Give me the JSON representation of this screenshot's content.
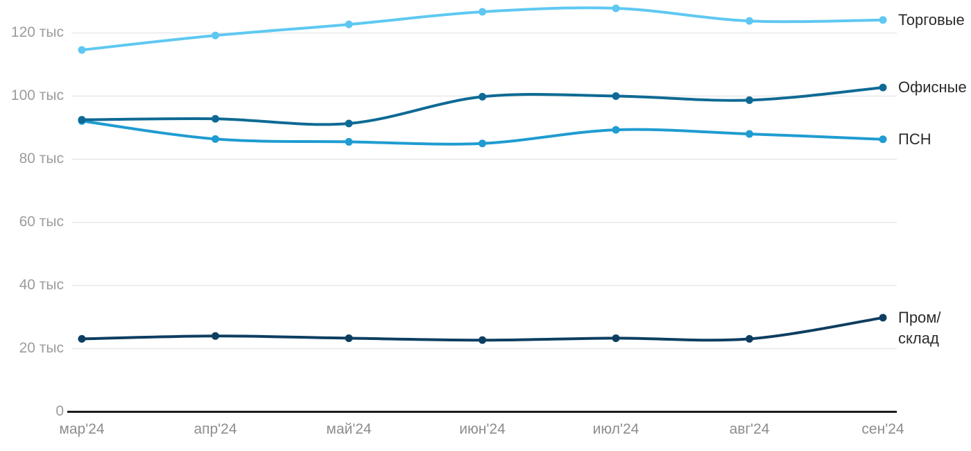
{
  "chart_data": {
    "type": "line",
    "title": "",
    "xlabel": "",
    "ylabel": "",
    "unit_suffix": "тыс",
    "categories": [
      "мар'24",
      "апр'24",
      "май'24",
      "июн'24",
      "июл'24",
      "авг'24",
      "сен'24"
    ],
    "series": [
      {
        "name": "Торговые",
        "label_lines": [
          "Торговые"
        ],
        "color": "#5fc8f2",
        "values": [
          114.5,
          119.1,
          122.6,
          126.6,
          127.7,
          123.7,
          124.0
        ]
      },
      {
        "name": "ПСН",
        "label_lines": [
          "ПСН"
        ],
        "color": "#1f9cd1",
        "values": [
          92.0,
          86.3,
          85.4,
          84.9,
          89.2,
          87.9,
          86.2
        ]
      },
      {
        "name": "Офисные",
        "label_lines": [
          "Офисные"
        ],
        "color": "#0e6a94",
        "values": [
          92.4,
          92.7,
          91.2,
          99.7,
          99.9,
          98.6,
          102.6
        ]
      },
      {
        "name": "Пром/склад",
        "label_lines": [
          "Пром/",
          "склад"
        ],
        "color": "#0d3e61",
        "values": [
          23.0,
          23.9,
          23.2,
          22.6,
          23.2,
          23.0,
          29.7
        ]
      }
    ],
    "yticks": [
      {
        "value": 0,
        "label": "0"
      },
      {
        "value": 20,
        "label": "20 тыс"
      },
      {
        "value": 40,
        "label": "40 тыс"
      },
      {
        "value": 60,
        "label": "60 тыс"
      },
      {
        "value": 80,
        "label": "80 тыс"
      },
      {
        "value": 100,
        "label": "100 тыс"
      },
      {
        "value": 120,
        "label": "120 тыс"
      }
    ],
    "ylim": [
      0,
      130
    ],
    "grid": true,
    "legend_position": "right-end-labels"
  },
  "style": {
    "background": "#ffffff",
    "grid_color": "#e8e8e8",
    "axis_color": "#1c1c1c",
    "ytick_color": "#9c9c9c",
    "xtick_color": "#8d8d8d",
    "series_label_color": "#2b2b2b"
  }
}
